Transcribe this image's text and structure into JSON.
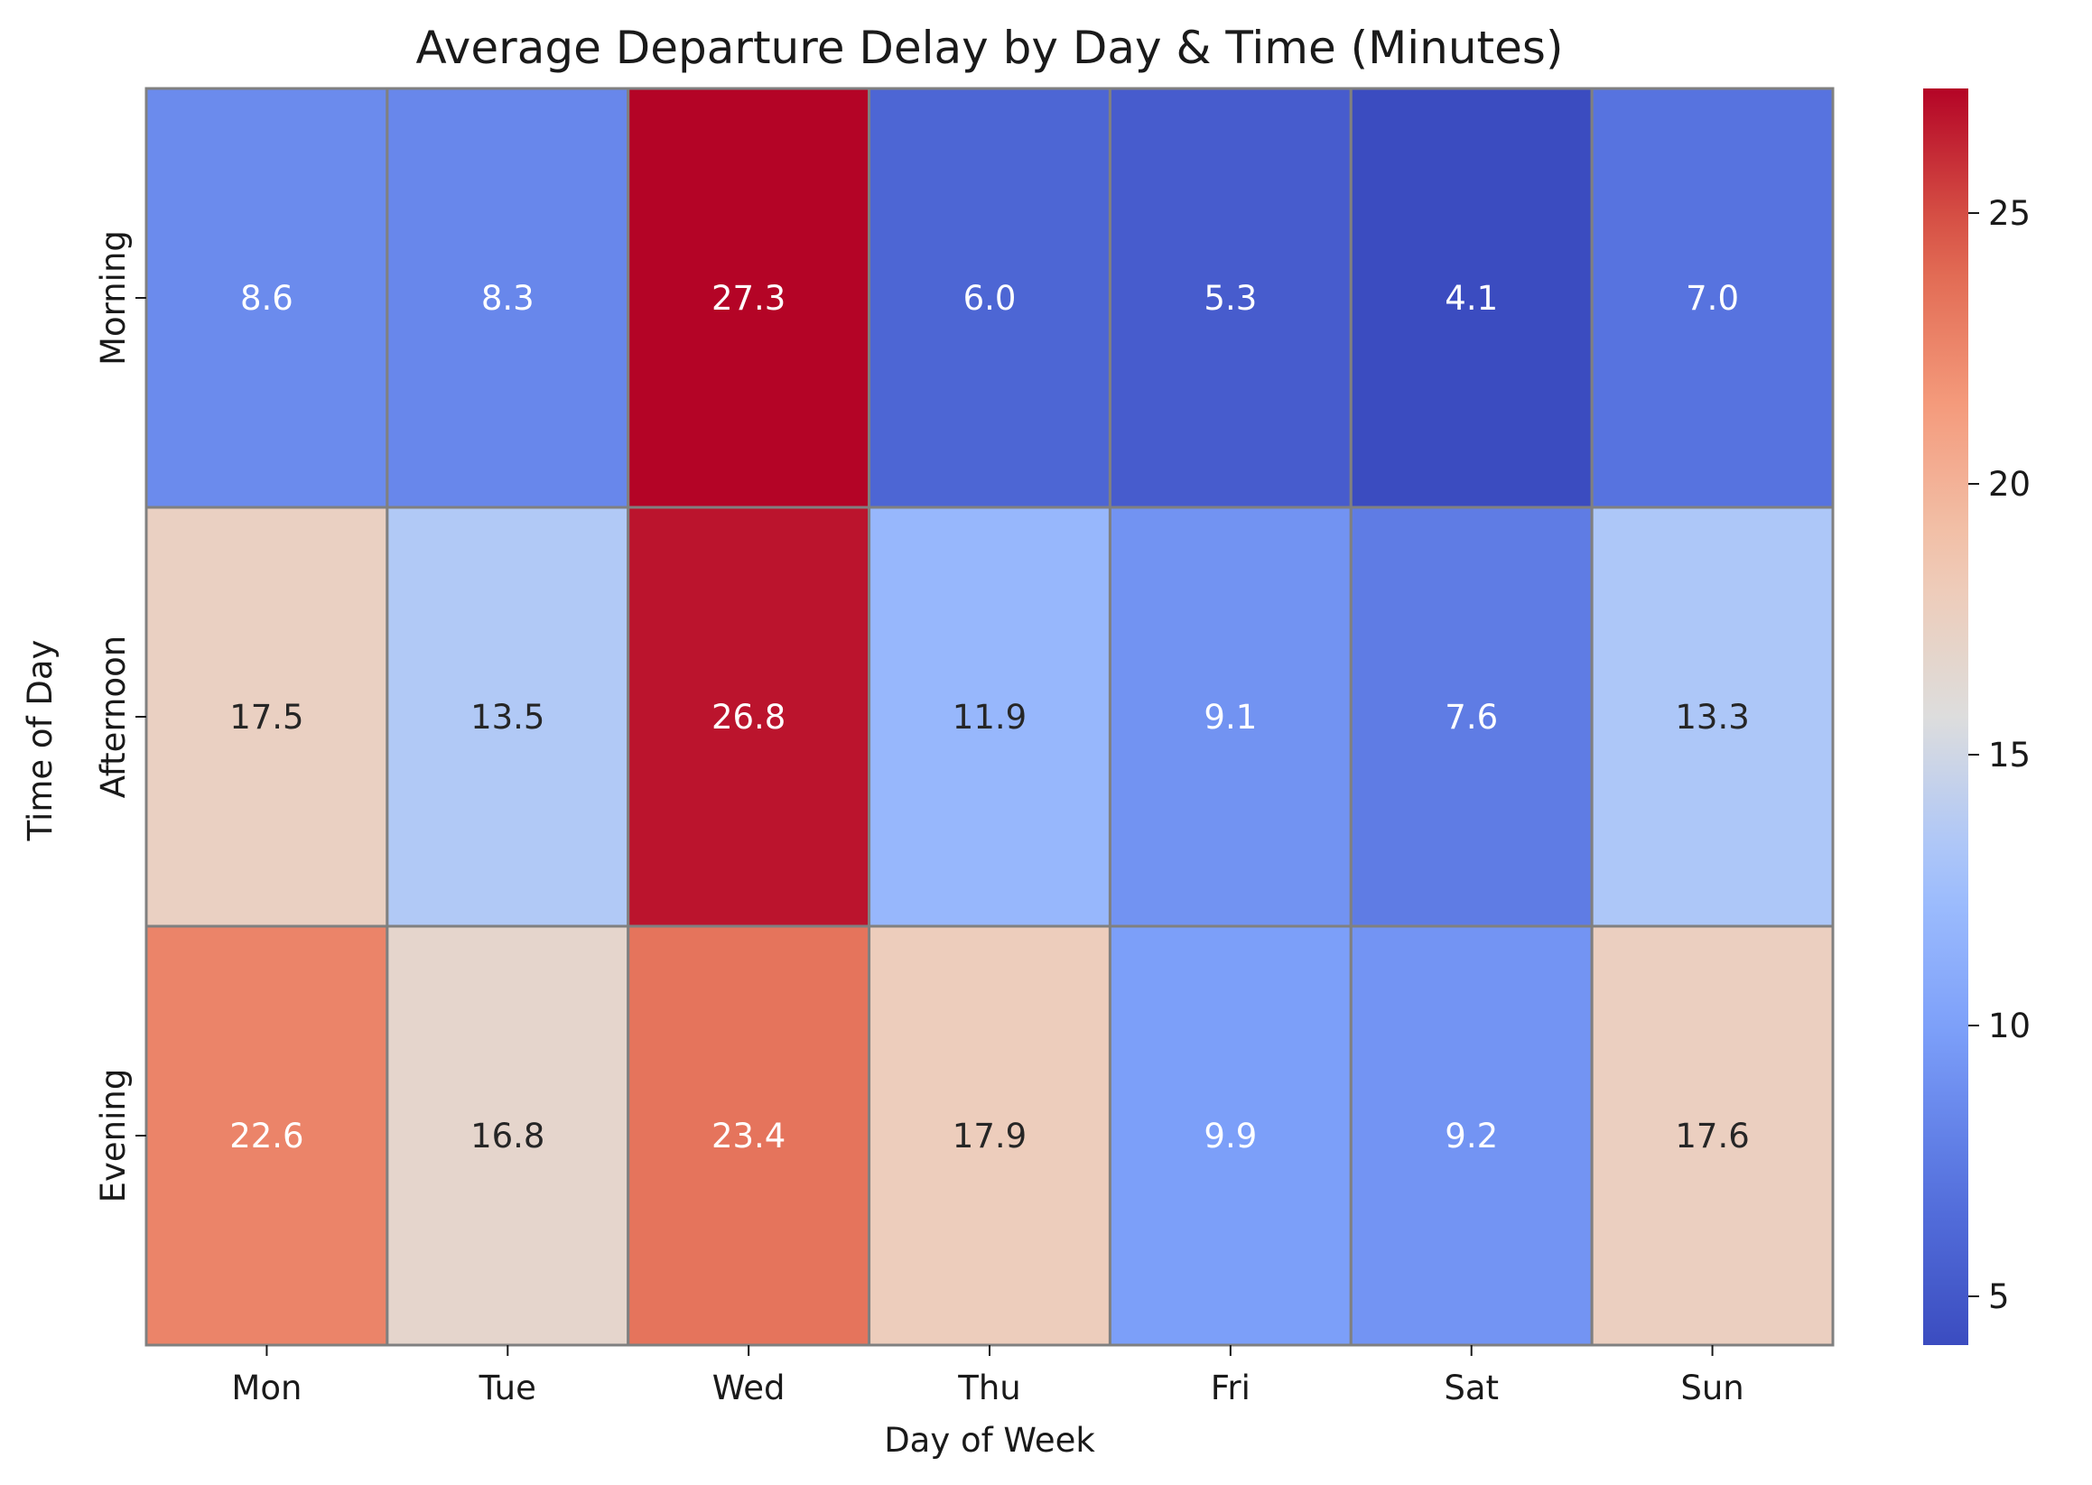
{
  "chart_data": {
    "type": "heatmap",
    "title": "Average Departure Delay by Day & Time (Minutes)",
    "xlabel": "Day of Week",
    "ylabel": "Time of Day",
    "x_categories": [
      "Mon",
      "Tue",
      "Wed",
      "Thu",
      "Fri",
      "Sat",
      "Sun"
    ],
    "y_categories": [
      "Morning",
      "Afternoon",
      "Evening"
    ],
    "values": [
      [
        8.6,
        8.3,
        27.3,
        6.0,
        5.3,
        4.1,
        7.0
      ],
      [
        17.5,
        13.5,
        26.8,
        11.9,
        9.1,
        7.6,
        13.3
      ],
      [
        22.6,
        16.8,
        23.4,
        17.9,
        9.9,
        9.2,
        17.6
      ]
    ],
    "value_labels": [
      [
        "8.6",
        "8.3",
        "27.3",
        "6.0",
        "5.3",
        "4.1",
        "7.0"
      ],
      [
        "17.5",
        "13.5",
        "26.8",
        "11.9",
        "9.1",
        "7.6",
        "13.3"
      ],
      [
        "22.6",
        "16.8",
        "23.4",
        "17.9",
        "9.9",
        "9.2",
        "17.6"
      ]
    ],
    "colormap": "coolwarm",
    "vmin": 4.1,
    "vmax": 27.3,
    "colorbar_ticks": [
      5,
      10,
      15,
      20,
      25
    ],
    "colorbar_tick_labels": [
      "5",
      "10",
      "15",
      "20",
      "25"
    ],
    "cell_border_color": "#808080",
    "legend": "colorbar right"
  }
}
